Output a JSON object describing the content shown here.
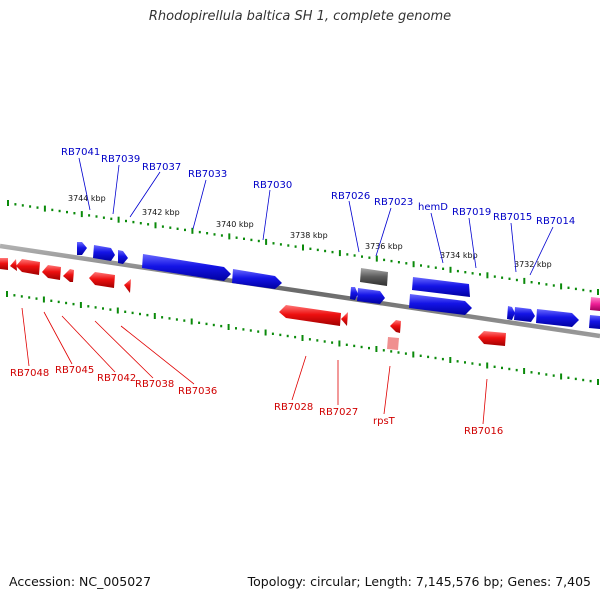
{
  "title": "Rhodopirellula baltica SH 1, complete genome",
  "accession": "Accession: NC_005027",
  "summary": "Topology: circular; Length: 7,145,576 bp; Genes: 7,405",
  "colors": {
    "forward": "#1010e0",
    "reverse": "#e81010",
    "gray": "#5a5a5a",
    "pink": "#ee1e96",
    "tick": "#0a8a0a",
    "backbone": "#808080"
  },
  "kbp_labels": [
    "3744 kbp",
    "3742 kbp",
    "3740 kbp",
    "3738 kbp",
    "3736 kbp",
    "3734 kbp",
    "3732 kbp"
  ],
  "forward_labels": [
    "RB7041",
    "RB7039",
    "RB7037",
    "RB7033",
    "RB7030",
    "RB7026",
    "RB7023",
    "hemD",
    "RB7019",
    "RB7015",
    "RB7014"
  ],
  "reverse_labels": [
    "RB7048",
    "RB7045",
    "RB7042",
    "RB7038",
    "RB7036",
    "RB7028",
    "RB7027",
    "rpsT",
    "RB7016"
  ]
}
